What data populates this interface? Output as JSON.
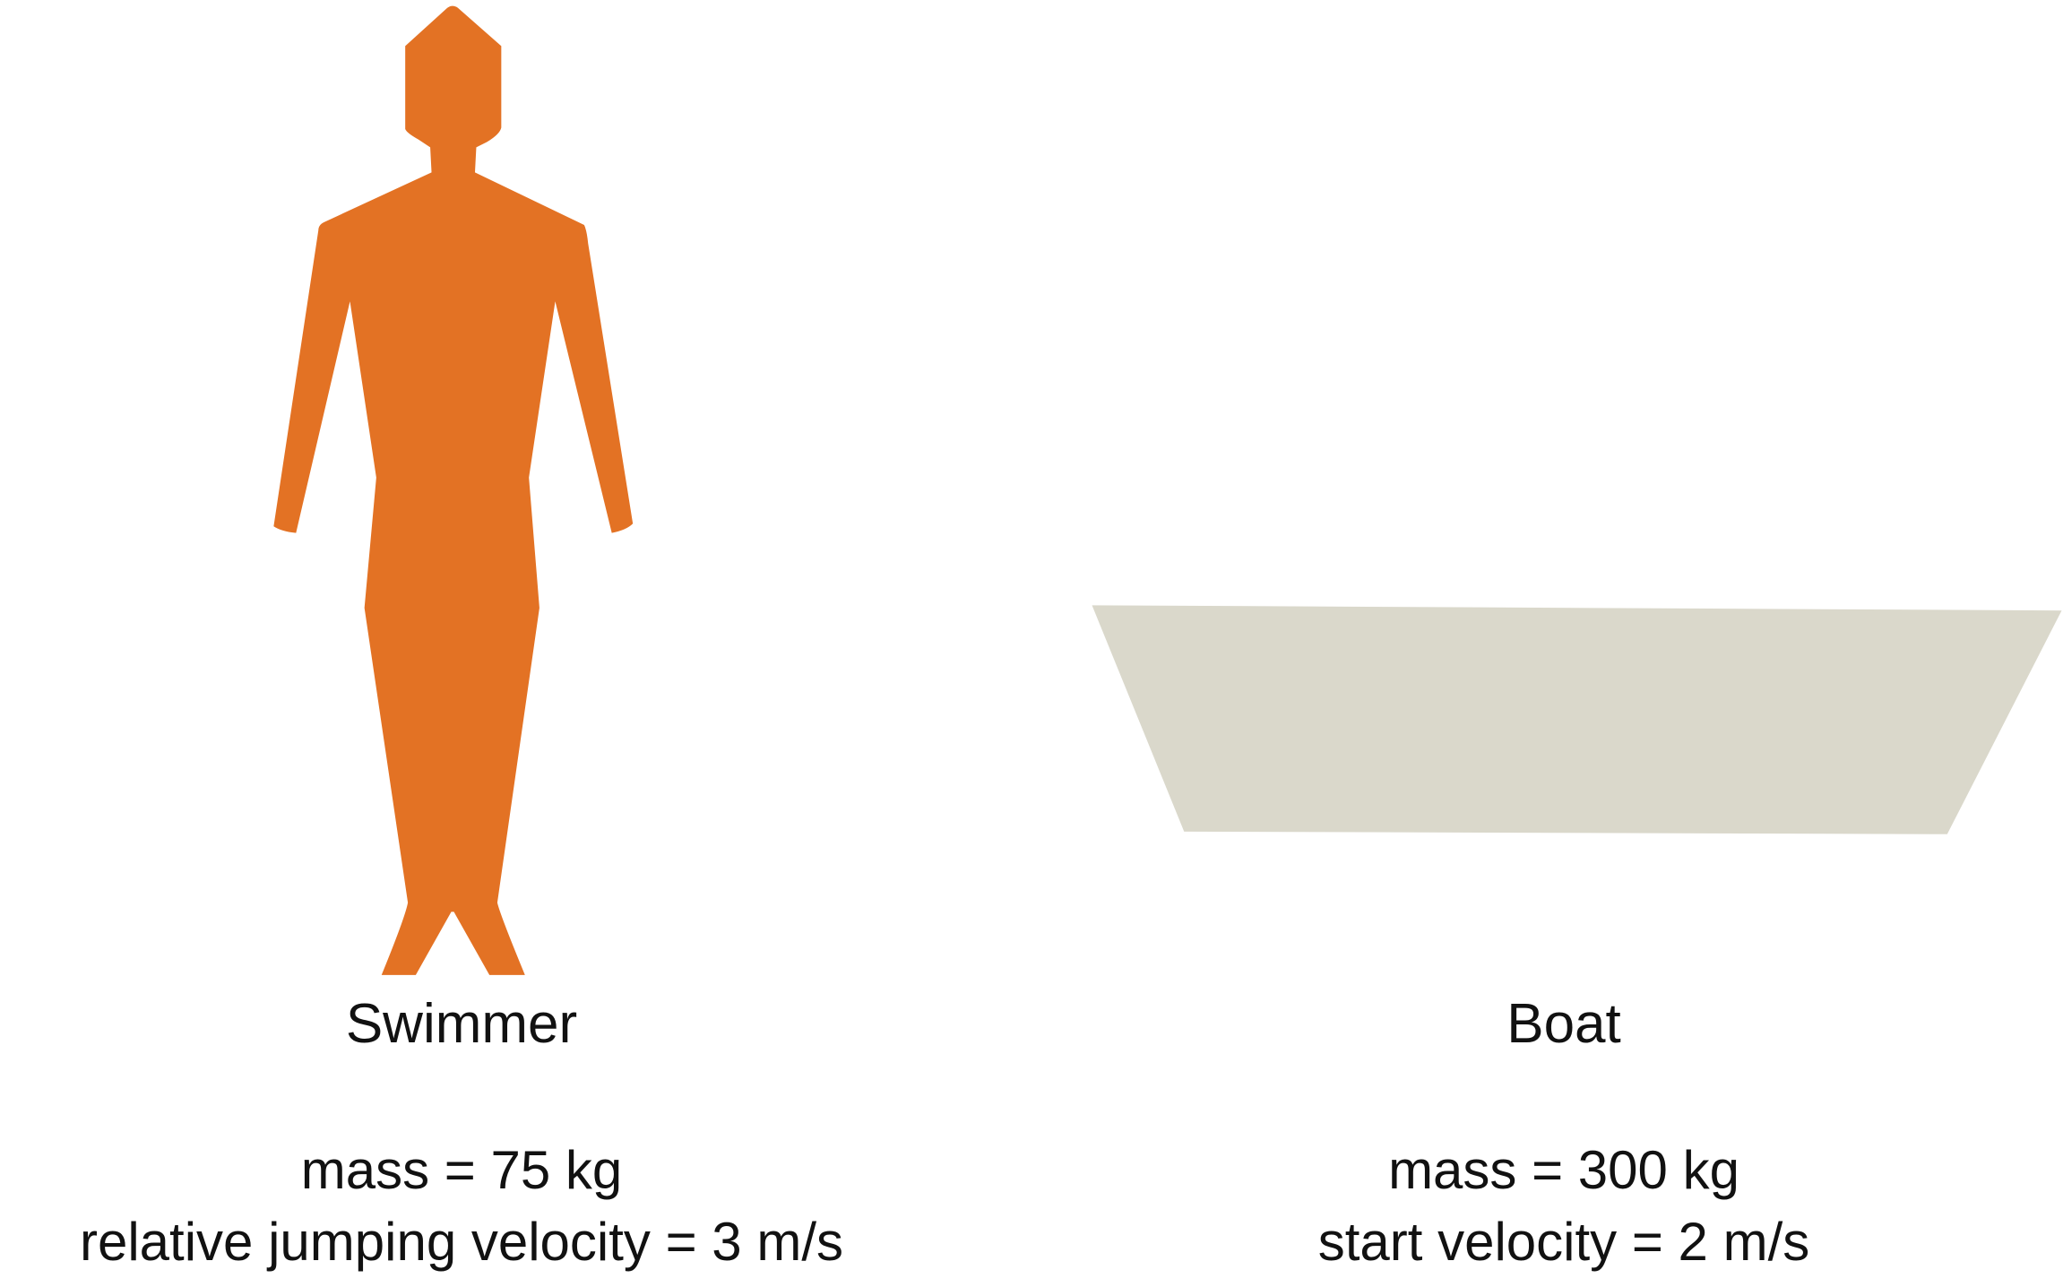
{
  "colors": {
    "swimmer_fill": "#E37224",
    "boat_fill": "#DAD8CB",
    "text": "#111111",
    "background": "#FFFFFF"
  },
  "swimmer": {
    "icon": "person-silhouette-icon",
    "title": "Swimmer",
    "mass_label": "mass = 75 kg",
    "velocity_label": "relative jumping velocity = 3 m/s"
  },
  "boat": {
    "icon": "boat-hull-icon",
    "title": "Boat",
    "mass_label": "mass = 300 kg",
    "velocity_label": "start velocity = 2 m/s"
  }
}
